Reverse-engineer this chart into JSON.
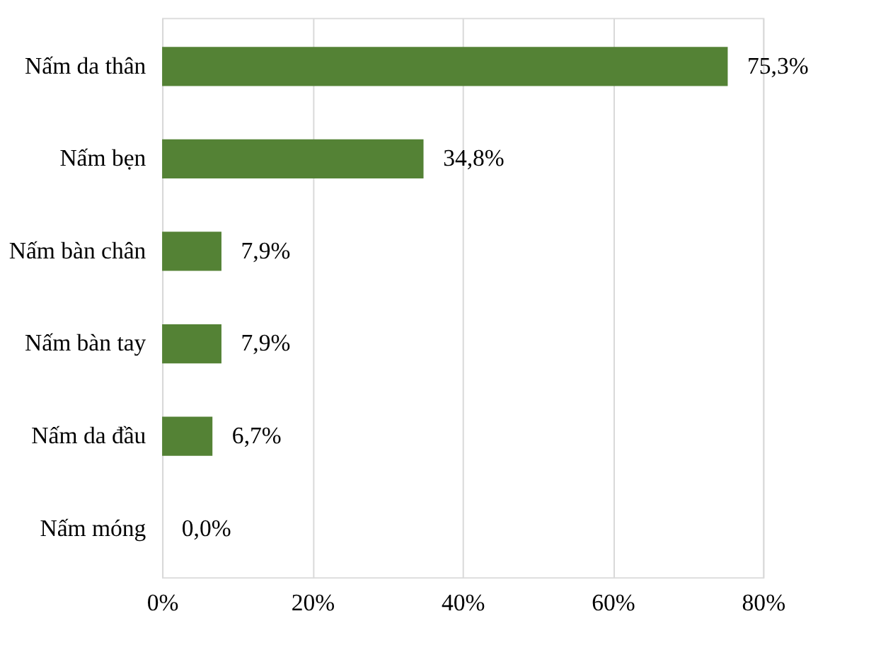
{
  "chart_data": {
    "type": "bar",
    "orientation": "horizontal",
    "categories": [
      "Nấm da thân",
      "Nấm bẹn",
      "Nấm bàn chân",
      "Nấm bàn tay",
      "Nấm da đầu",
      "Nấm móng"
    ],
    "values": [
      75.3,
      34.8,
      7.9,
      7.9,
      6.7,
      0.0
    ],
    "value_labels": [
      "75,3%",
      "34,8%",
      "7,9%",
      "7,9%",
      "6,7%",
      "0,0%"
    ],
    "color": "#548235",
    "xlim": [
      0,
      80
    ],
    "xticks": [
      {
        "value": 0,
        "label": "0%"
      },
      {
        "value": 20,
        "label": "20%"
      },
      {
        "value": 40,
        "label": "40%"
      },
      {
        "value": 60,
        "label": "60%"
      },
      {
        "value": 80,
        "label": "80%"
      }
    ],
    "grid": "x"
  }
}
